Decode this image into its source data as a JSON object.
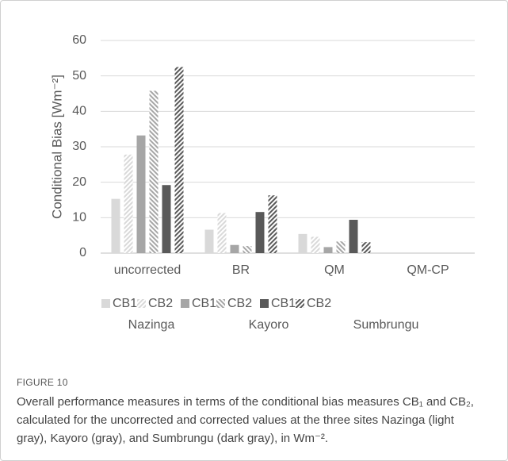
{
  "chart_data": {
    "type": "bar",
    "ylabel": "Conditional Bias [Wm⁻²]",
    "categories": [
      "uncorrected",
      "BR",
      "QM",
      "QM-CP"
    ],
    "series": [
      {
        "name": "CB1",
        "color": "#d9d9d9",
        "pattern": "solid",
        "group": 0,
        "values": [
          15.3,
          6.6,
          5.4,
          0
        ]
      },
      {
        "name": "CB2",
        "color": "#d9d9d9",
        "pattern": "hatch",
        "group": 0,
        "values": [
          27.8,
          11.3,
          4.6,
          0
        ]
      },
      {
        "name": "CB1",
        "color": "#a6a6a6",
        "pattern": "solid",
        "group": 1,
        "values": [
          33.2,
          2.3,
          1.7,
          0
        ]
      },
      {
        "name": "CB2",
        "color": "#a6a6a6",
        "pattern": "hatch",
        "group": 1,
        "values": [
          45.8,
          2.0,
          3.3,
          0
        ]
      },
      {
        "name": "CB1",
        "color": "#595959",
        "pattern": "solid",
        "group": 2,
        "values": [
          19.2,
          11.6,
          9.4,
          0
        ]
      },
      {
        "name": "CB2",
        "color": "#595959",
        "pattern": "hatch",
        "group": 2,
        "values": [
          52.5,
          16.3,
          3.1,
          0
        ]
      }
    ],
    "legend_groups": [
      "Nazinga",
      "Kayoro",
      "Sumbrungu"
    ],
    "ylim": [
      0,
      60
    ],
    "yticks": [
      0,
      10,
      20,
      30,
      40,
      50,
      60
    ],
    "grid": true
  },
  "figure_label": "FIGURE 10",
  "caption": "Overall performance measures in terms of the conditional bias measures CB₁ and CB₂, calculated for the uncorrected and corrected values at the three sites Nazinga (light gray), Kayoro (gray), and Sumbrungu (dark gray), in Wm⁻²."
}
